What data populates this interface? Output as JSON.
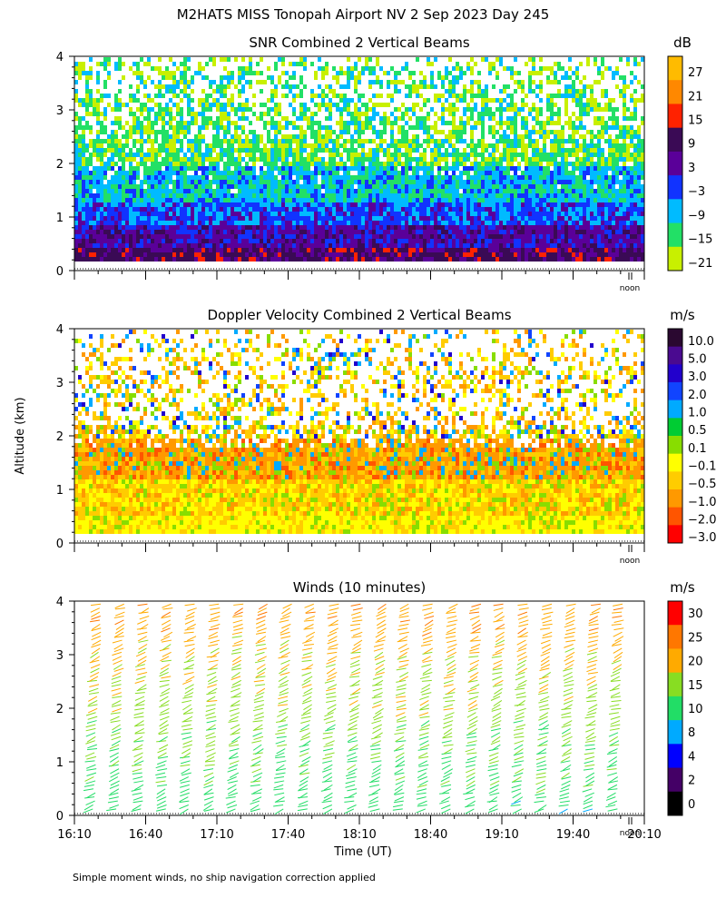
{
  "figure_title": "M2HATS MISS Tonopah Airport NV   2 Sep 2023 Day 245",
  "ylabel": "Altitude (km)",
  "xlabel": "Time (UT)",
  "footnote": "Simple moment winds, no ship navigation correction applied",
  "noon_label": "noon",
  "chart_data": [
    {
      "type": "heatmap",
      "title": "SNR Combined 2 Vertical Beams",
      "units": "dB",
      "ylim": [
        0,
        4
      ],
      "yticks": [
        0,
        1,
        2,
        3,
        4
      ],
      "colorbar": {
        "labels": [
          "27",
          "21",
          "15",
          "9",
          "3",
          "−3",
          "−9",
          "−15",
          "−21"
        ],
        "colors": [
          "#ffbb00",
          "#ff8800",
          "#ff2200",
          "#3a0a55",
          "#5a0099",
          "#1133ff",
          "#00bbff",
          "#22e066",
          "#c8f000"
        ]
      },
      "profile_by_altitude": [
        {
          "alt_km": 0.2,
          "band": "high (~9 to 15 dB)"
        },
        {
          "alt_km": 0.6,
          "band": "~3 dB"
        },
        {
          "alt_km": 1.0,
          "band": "~-3 dB"
        },
        {
          "alt_km": 1.6,
          "band": "~-9 dB"
        },
        {
          "alt_km": 2.5,
          "band": "~-15 dB"
        },
        {
          "alt_km": 3.5,
          "band": "~-21 dB, patchy"
        }
      ]
    },
    {
      "type": "heatmap",
      "title": "Doppler Velocity Combined 2 Vertical Beams",
      "units": "m/s",
      "ylim": [
        0,
        4
      ],
      "yticks": [
        0,
        1,
        2,
        3,
        4
      ],
      "colorbar": {
        "labels": [
          "10.0",
          "5.0",
          "3.0",
          "2.0",
          "1.0",
          "0.5",
          "0.1",
          "−0.1",
          "−0.5",
          "−1.0",
          "−2.0",
          "−3.0"
        ],
        "colors": [
          "#2a0830",
          "#4a0a90",
          "#2200cc",
          "#1144ff",
          "#00aaff",
          "#00cc33",
          "#88dd00",
          "#ffff00",
          "#ffcc00",
          "#ff9900",
          "#ff5500",
          "#ff0000"
        ]
      },
      "profile_by_altitude": [
        {
          "alt_km": 0.2,
          "band": "~-0.1 m/s"
        },
        {
          "alt_km": 1.0,
          "band": "~-0.5 m/s"
        },
        {
          "alt_km": 1.8,
          "band": "~-1.0 m/s"
        },
        {
          "alt_km": 3.2,
          "band": "mixed, patchy"
        }
      ]
    },
    {
      "type": "wind_barbs",
      "title": "Winds (10 minutes)",
      "units": "m/s",
      "ylim": [
        0,
        4
      ],
      "yticks": [
        0,
        1,
        2,
        3,
        4
      ],
      "x_ticks": [
        "16:10",
        "16:40",
        "17:10",
        "17:40",
        "18:10",
        "18:40",
        "19:10",
        "19:40",
        "20:10"
      ],
      "x_range_minutes": [
        970,
        1210
      ],
      "profile_times": [
        "16:20",
        "16:30",
        "16:40",
        "16:50",
        "17:00",
        "17:10",
        "17:20",
        "17:30",
        "17:40",
        "17:50",
        "18:00",
        "18:10",
        "18:20",
        "18:30",
        "18:40",
        "18:50",
        "19:00",
        "19:10",
        "19:20",
        "19:30",
        "19:40",
        "19:50",
        "20:00"
      ],
      "speed_profile": [
        {
          "alt_km": 0.1,
          "speed_ms": 12
        },
        {
          "alt_km": 0.5,
          "speed_ms": 13
        },
        {
          "alt_km": 1.0,
          "speed_ms": 14
        },
        {
          "alt_km": 1.5,
          "speed_ms": 16
        },
        {
          "alt_km": 2.0,
          "speed_ms": 18
        },
        {
          "alt_km": 2.5,
          "speed_ms": 19
        },
        {
          "alt_km": 3.0,
          "speed_ms": 21
        },
        {
          "alt_km": 3.5,
          "speed_ms": 23
        },
        {
          "alt_km": 4.0,
          "speed_ms": 24
        }
      ],
      "colorbar": {
        "labels": [
          "30",
          "25",
          "20",
          "15",
          "10",
          "8",
          "4",
          "2",
          "0"
        ],
        "colors": [
          "#ff0000",
          "#ff7700",
          "#ffaa00",
          "#88dd22",
          "#22dd66",
          "#00aaff",
          "#0000ff",
          "#440066",
          "#000000"
        ]
      }
    }
  ]
}
